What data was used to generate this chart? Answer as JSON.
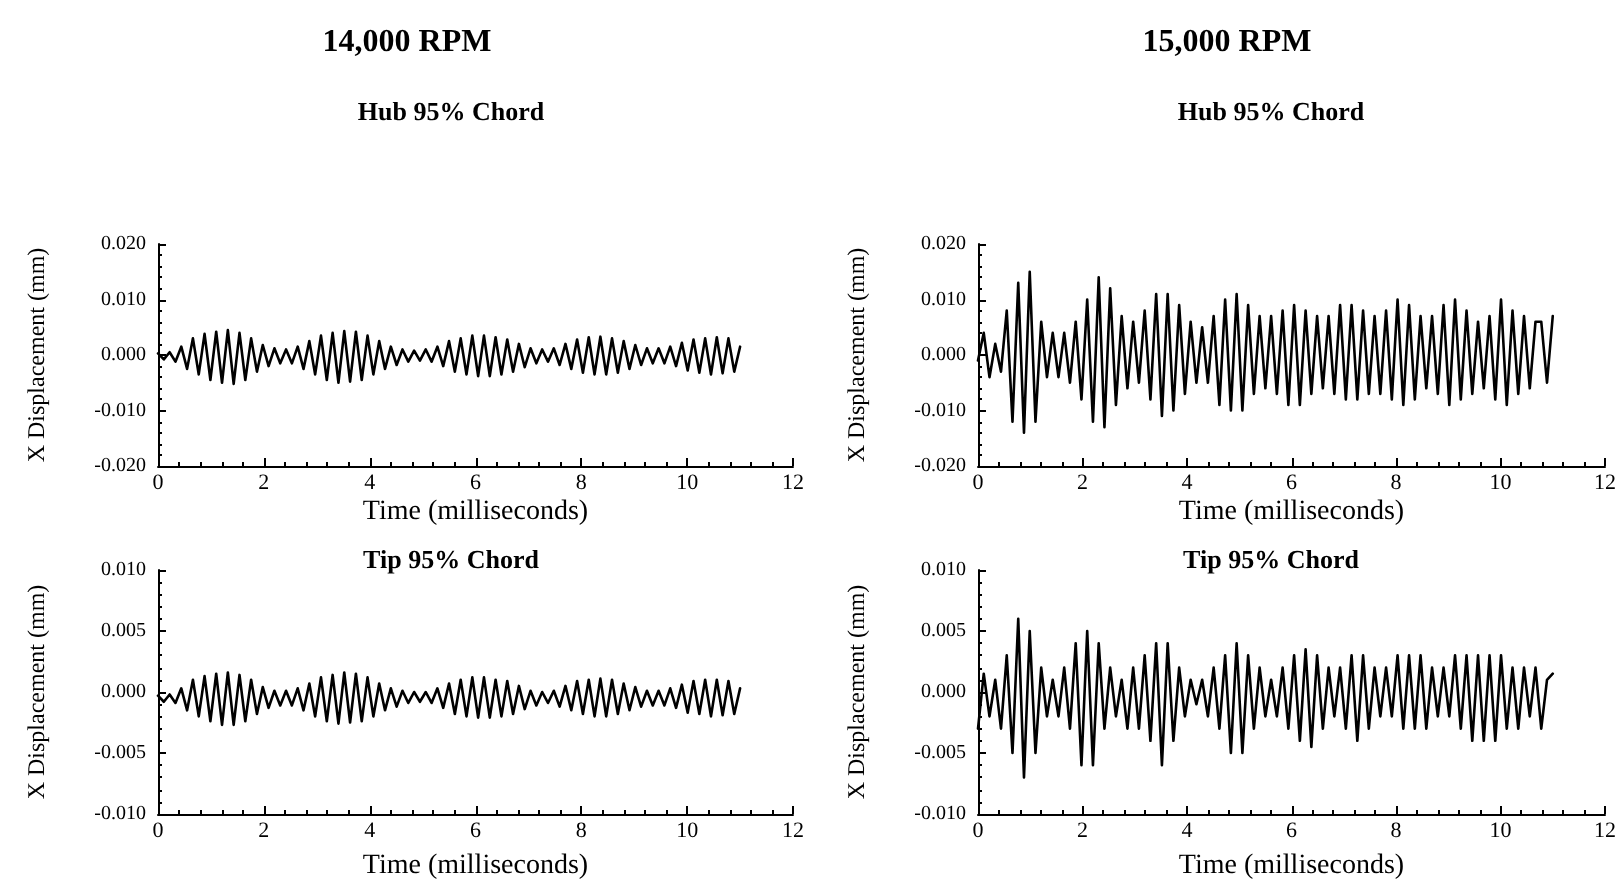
{
  "chart_data": [
    {
      "type": "line",
      "subtitle": "14,000 RPM",
      "title": "Hub 95% Chord",
      "xlabel": "Time (milliseconds)",
      "ylabel": "X Displacement (mm)",
      "color": "#000000",
      "grid": false,
      "xlim": [
        0,
        12
      ],
      "xticks": [
        0,
        2,
        4,
        6,
        8,
        10,
        12
      ],
      "ylim": [
        -0.02,
        0.02
      ],
      "yticks": [
        {
          "value": -0.02,
          "label": "-0.020"
        },
        {
          "value": -0.01,
          "label": "-0.010"
        },
        {
          "value": 0,
          "label": "0.000"
        },
        {
          "value": 0.01,
          "label": "0.010"
        },
        {
          "value": 0.02,
          "label": "0.020"
        }
      ],
      "x": [
        0,
        0.11,
        0.22,
        0.33,
        0.44,
        0.55,
        0.66,
        0.77,
        0.88,
        0.99,
        1.1,
        1.21,
        1.32,
        1.43,
        1.54,
        1.65,
        1.76,
        1.87,
        1.98,
        2.09,
        2.2,
        2.31,
        2.42,
        2.53,
        2.64,
        2.75,
        2.86,
        2.97,
        3.08,
        3.19,
        3.3,
        3.41,
        3.52,
        3.63,
        3.74,
        3.85,
        3.96,
        4.07,
        4.18,
        4.29,
        4.4,
        4.51,
        4.62,
        4.73,
        4.84,
        4.95,
        5.06,
        5.17,
        5.28,
        5.39,
        5.5,
        5.61,
        5.72,
        5.83,
        5.94,
        6.05,
        6.16,
        6.27,
        6.38,
        6.49,
        6.6,
        6.71,
        6.82,
        6.93,
        7.04,
        7.15,
        7.26,
        7.37,
        7.48,
        7.59,
        7.7,
        7.81,
        7.92,
        8.03,
        8.14,
        8.25,
        8.36,
        8.47,
        8.58,
        8.69,
        8.8,
        8.91,
        9.02,
        9.13,
        9.24,
        9.35,
        9.46,
        9.57,
        9.68,
        9.79,
        9.9,
        10.01,
        10.12,
        10.23,
        10.34,
        10.45,
        10.56,
        10.67,
        10.78,
        10.89,
        11
      ],
      "values": [
        0.0003,
        -0.0008,
        0.0005,
        -0.0012,
        0.0015,
        -0.0025,
        0.003,
        -0.0035,
        0.0038,
        -0.0045,
        0.0042,
        -0.005,
        0.0045,
        -0.0052,
        0.004,
        -0.0045,
        0.003,
        -0.003,
        0.0018,
        -0.002,
        0.0012,
        -0.0015,
        0.001,
        -0.0015,
        0.0015,
        -0.0025,
        0.0025,
        -0.0035,
        0.0035,
        -0.0045,
        0.004,
        -0.005,
        0.0043,
        -0.0048,
        0.0042,
        -0.0045,
        0.0035,
        -0.0035,
        0.0025,
        -0.0025,
        0.0015,
        -0.0018,
        0.001,
        -0.0012,
        0.0008,
        -0.001,
        0.001,
        -0.0012,
        0.0015,
        -0.002,
        0.0025,
        -0.003,
        0.003,
        -0.0035,
        0.0035,
        -0.0038,
        0.0035,
        -0.0038,
        0.0032,
        -0.0035,
        0.0028,
        -0.003,
        0.002,
        -0.0022,
        0.0012,
        -0.0015,
        0.001,
        -0.0012,
        0.0012,
        -0.0018,
        0.002,
        -0.0025,
        0.0028,
        -0.0032,
        0.0032,
        -0.0035,
        0.0033,
        -0.0035,
        0.003,
        -0.0032,
        0.0025,
        -0.0025,
        0.0018,
        -0.0018,
        0.0012,
        -0.0015,
        0.0012,
        -0.0015,
        0.0015,
        -0.002,
        0.0022,
        -0.0028,
        0.0028,
        -0.0032,
        0.003,
        -0.0035,
        0.0032,
        -0.0033,
        0.003,
        -0.003,
        0.0015
      ]
    },
    {
      "type": "line",
      "subtitle": "15,000 RPM",
      "title": "Hub 95% Chord",
      "xlabel": "Time (milliseconds)",
      "ylabel": "X Displacement (mm)",
      "color": "#000000",
      "grid": false,
      "xlim": [
        0,
        12
      ],
      "xticks": [
        0,
        2,
        4,
        6,
        8,
        10,
        12
      ],
      "ylim": [
        -0.02,
        0.02
      ],
      "yticks": [
        {
          "value": -0.02,
          "label": "-0.020"
        },
        {
          "value": -0.01,
          "label": "-0.010"
        },
        {
          "value": 0,
          "label": "0.000"
        },
        {
          "value": 0.01,
          "label": "0.010"
        },
        {
          "value": 0.02,
          "label": "0.020"
        }
      ],
      "x": [
        0,
        0.11,
        0.22,
        0.33,
        0.44,
        0.55,
        0.66,
        0.77,
        0.88,
        0.99,
        1.1,
        1.21,
        1.32,
        1.43,
        1.54,
        1.65,
        1.76,
        1.87,
        1.98,
        2.09,
        2.2,
        2.31,
        2.42,
        2.53,
        2.64,
        2.75,
        2.86,
        2.97,
        3.08,
        3.19,
        3.3,
        3.41,
        3.52,
        3.63,
        3.74,
        3.85,
        3.96,
        4.07,
        4.18,
        4.29,
        4.4,
        4.51,
        4.62,
        4.73,
        4.84,
        4.95,
        5.06,
        5.17,
        5.28,
        5.39,
        5.5,
        5.61,
        5.72,
        5.83,
        5.94,
        6.05,
        6.16,
        6.27,
        6.38,
        6.49,
        6.6,
        6.71,
        6.82,
        6.93,
        7.04,
        7.15,
        7.26,
        7.37,
        7.48,
        7.59,
        7.7,
        7.81,
        7.92,
        8.03,
        8.14,
        8.25,
        8.36,
        8.47,
        8.58,
        8.69,
        8.8,
        8.91,
        9.02,
        9.13,
        9.24,
        9.35,
        9.46,
        9.57,
        9.68,
        9.79,
        9.9,
        10.01,
        10.12,
        10.23,
        10.34,
        10.45,
        10.56,
        10.67,
        10.78,
        10.89,
        11
      ],
      "values": [
        -0.001,
        0.004,
        -0.004,
        0.002,
        -0.003,
        0.008,
        -0.012,
        0.013,
        -0.014,
        0.015,
        -0.012,
        0.006,
        -0.004,
        0.004,
        -0.004,
        0.004,
        -0.005,
        0.006,
        -0.008,
        0.01,
        -0.012,
        0.014,
        -0.013,
        0.012,
        -0.009,
        0.007,
        -0.006,
        0.006,
        -0.005,
        0.008,
        -0.008,
        0.011,
        -0.011,
        0.011,
        -0.01,
        0.009,
        -0.007,
        0.006,
        -0.005,
        0.005,
        -0.005,
        0.007,
        -0.009,
        0.01,
        -0.01,
        0.011,
        -0.01,
        0.009,
        -0.007,
        0.007,
        -0.006,
        0.007,
        -0.007,
        0.008,
        -0.009,
        0.009,
        -0.009,
        0.008,
        -0.007,
        0.007,
        -0.006,
        0.007,
        -0.007,
        0.009,
        -0.008,
        0.009,
        -0.008,
        0.008,
        -0.007,
        0.007,
        -0.007,
        0.008,
        -0.008,
        0.01,
        -0.009,
        0.009,
        -0.008,
        0.007,
        -0.006,
        0.007,
        -0.007,
        0.009,
        -0.009,
        0.01,
        -0.008,
        0.008,
        -0.007,
        0.006,
        -0.006,
        0.007,
        -0.008,
        0.01,
        -0.009,
        0.008,
        -0.007,
        0.007,
        -0.006,
        0.006,
        0.006,
        -0.005,
        0.007
      ]
    },
    {
      "type": "line",
      "title": "Tip 95% Chord",
      "xlabel": "Time (milliseconds)",
      "ylabel": "X Displacement (mm)",
      "color": "#000000",
      "grid": false,
      "xlim": [
        0,
        12
      ],
      "xticks": [
        0,
        2,
        4,
        6,
        8,
        10,
        12
      ],
      "ylim": [
        -0.01,
        0.01
      ],
      "yticks": [
        {
          "value": -0.01,
          "label": "-0.010"
        },
        {
          "value": -0.005,
          "label": "-0.005"
        },
        {
          "value": 0,
          "label": "0.000"
        },
        {
          "value": 0.005,
          "label": "0.005"
        },
        {
          "value": 0.01,
          "label": "0.010"
        }
      ],
      "x": [
        0,
        0.11,
        0.22,
        0.33,
        0.44,
        0.55,
        0.66,
        0.77,
        0.88,
        0.99,
        1.1,
        1.21,
        1.32,
        1.43,
        1.54,
        1.65,
        1.76,
        1.87,
        1.98,
        2.09,
        2.2,
        2.31,
        2.42,
        2.53,
        2.64,
        2.75,
        2.86,
        2.97,
        3.08,
        3.19,
        3.3,
        3.41,
        3.52,
        3.63,
        3.74,
        3.85,
        3.96,
        4.07,
        4.18,
        4.29,
        4.4,
        4.51,
        4.62,
        4.73,
        4.84,
        4.95,
        5.06,
        5.17,
        5.28,
        5.39,
        5.5,
        5.61,
        5.72,
        5.83,
        5.94,
        6.05,
        6.16,
        6.27,
        6.38,
        6.49,
        6.6,
        6.71,
        6.82,
        6.93,
        7.04,
        7.15,
        7.26,
        7.37,
        7.48,
        7.59,
        7.7,
        7.81,
        7.92,
        8.03,
        8.14,
        8.25,
        8.36,
        8.47,
        8.58,
        8.69,
        8.8,
        8.91,
        9.02,
        9.13,
        9.24,
        9.35,
        9.46,
        9.57,
        9.68,
        9.79,
        9.9,
        10.01,
        10.12,
        10.23,
        10.34,
        10.45,
        10.56,
        10.67,
        10.78,
        10.89,
        11
      ],
      "values": [
        -0.0003,
        -0.0008,
        -0.0002,
        -0.0009,
        0.0003,
        -0.0015,
        0.001,
        -0.002,
        0.0013,
        -0.0024,
        0.0015,
        -0.0027,
        0.0016,
        -0.0027,
        0.0014,
        -0.0024,
        0.001,
        -0.0018,
        0.0004,
        -0.0013,
        0.0001,
        -0.0011,
        0.0001,
        -0.0011,
        0.0003,
        -0.0015,
        0.0007,
        -0.002,
        0.0012,
        -0.0024,
        0.0014,
        -0.0026,
        0.0016,
        -0.0025,
        0.0015,
        -0.0024,
        0.0012,
        -0.002,
        0.0007,
        -0.0015,
        0.0003,
        -0.0012,
        0.0001,
        -0.0009,
        0,
        -0.0008,
        0,
        -0.0009,
        0.0003,
        -0.0013,
        0.0007,
        -0.0018,
        0.001,
        -0.002,
        0.0012,
        -0.0021,
        0.0012,
        -0.0021,
        0.001,
        -0.002,
        0.0009,
        -0.0018,
        0.0005,
        -0.0014,
        0.0001,
        -0.0011,
        0,
        -0.0009,
        0.0001,
        -0.0012,
        0.0005,
        -0.0015,
        0.0009,
        -0.0018,
        0.001,
        -0.002,
        0.0011,
        -0.002,
        0.001,
        -0.0018,
        0.0007,
        -0.0015,
        0.0004,
        -0.0012,
        0.0001,
        -0.0011,
        0.0001,
        -0.0011,
        0.0003,
        -0.0013,
        0.0006,
        -0.0017,
        0.0009,
        -0.0018,
        0.001,
        -0.002,
        0.001,
        -0.0019,
        0.0009,
        -0.0018,
        0.0003
      ]
    },
    {
      "type": "line",
      "title": "Tip 95% Chord",
      "xlabel": "Time (milliseconds)",
      "ylabel": "X Displacement (mm)",
      "color": "#000000",
      "grid": false,
      "xlim": [
        0,
        12
      ],
      "xticks": [
        0,
        2,
        4,
        6,
        8,
        10,
        12
      ],
      "ylim": [
        -0.01,
        0.01
      ],
      "yticks": [
        {
          "value": -0.01,
          "label": "-0.010"
        },
        {
          "value": -0.005,
          "label": "-0.005"
        },
        {
          "value": 0,
          "label": "0.000"
        },
        {
          "value": 0.005,
          "label": "0.005"
        },
        {
          "value": 0.01,
          "label": "0.010"
        }
      ],
      "x": [
        0,
        0.11,
        0.22,
        0.33,
        0.44,
        0.55,
        0.66,
        0.77,
        0.88,
        0.99,
        1.1,
        1.21,
        1.32,
        1.43,
        1.54,
        1.65,
        1.76,
        1.87,
        1.98,
        2.09,
        2.2,
        2.31,
        2.42,
        2.53,
        2.64,
        2.75,
        2.86,
        2.97,
        3.08,
        3.19,
        3.3,
        3.41,
        3.52,
        3.63,
        3.74,
        3.85,
        3.96,
        4.07,
        4.18,
        4.29,
        4.4,
        4.51,
        4.62,
        4.73,
        4.84,
        4.95,
        5.06,
        5.17,
        5.28,
        5.39,
        5.5,
        5.61,
        5.72,
        5.83,
        5.94,
        6.05,
        6.16,
        6.27,
        6.38,
        6.49,
        6.6,
        6.71,
        6.82,
        6.93,
        7.04,
        7.15,
        7.26,
        7.37,
        7.48,
        7.59,
        7.7,
        7.81,
        7.92,
        8.03,
        8.14,
        8.25,
        8.36,
        8.47,
        8.58,
        8.69,
        8.8,
        8.91,
        9.02,
        9.13,
        9.24,
        9.35,
        9.46,
        9.57,
        9.68,
        9.79,
        9.9,
        10.01,
        10.12,
        10.23,
        10.34,
        10.45,
        10.56,
        10.67,
        10.78,
        10.89,
        11
      ],
      "values": [
        -0.003,
        0.0015,
        -0.002,
        0.001,
        -0.003,
        0.003,
        -0.005,
        0.006,
        -0.007,
        0.005,
        -0.005,
        0.002,
        -0.002,
        0.001,
        -0.002,
        0.002,
        -0.003,
        0.004,
        -0.006,
        0.005,
        -0.006,
        0.004,
        -0.003,
        0.002,
        -0.002,
        0.001,
        -0.003,
        0.002,
        -0.003,
        0.003,
        -0.004,
        0.004,
        -0.006,
        0.004,
        -0.004,
        0.002,
        -0.002,
        0.001,
        -0.001,
        0.001,
        -0.002,
        0.002,
        -0.003,
        0.003,
        -0.005,
        0.004,
        -0.005,
        0.003,
        -0.003,
        0.002,
        -0.002,
        0.001,
        -0.002,
        0.002,
        -0.003,
        0.003,
        -0.004,
        0.0035,
        -0.0045,
        0.003,
        -0.003,
        0.002,
        -0.002,
        0.002,
        -0.003,
        0.003,
        -0.004,
        0.003,
        -0.003,
        0.002,
        -0.002,
        0.002,
        -0.002,
        0.003,
        -0.003,
        0.003,
        -0.003,
        0.003,
        -0.003,
        0.002,
        -0.002,
        0.002,
        -0.002,
        0.003,
        -0.003,
        0.003,
        -0.004,
        0.003,
        -0.004,
        0.003,
        -0.004,
        0.003,
        -0.003,
        0.002,
        -0.003,
        0.002,
        -0.002,
        0.002,
        -0.003,
        0.001,
        0.0015
      ]
    }
  ]
}
